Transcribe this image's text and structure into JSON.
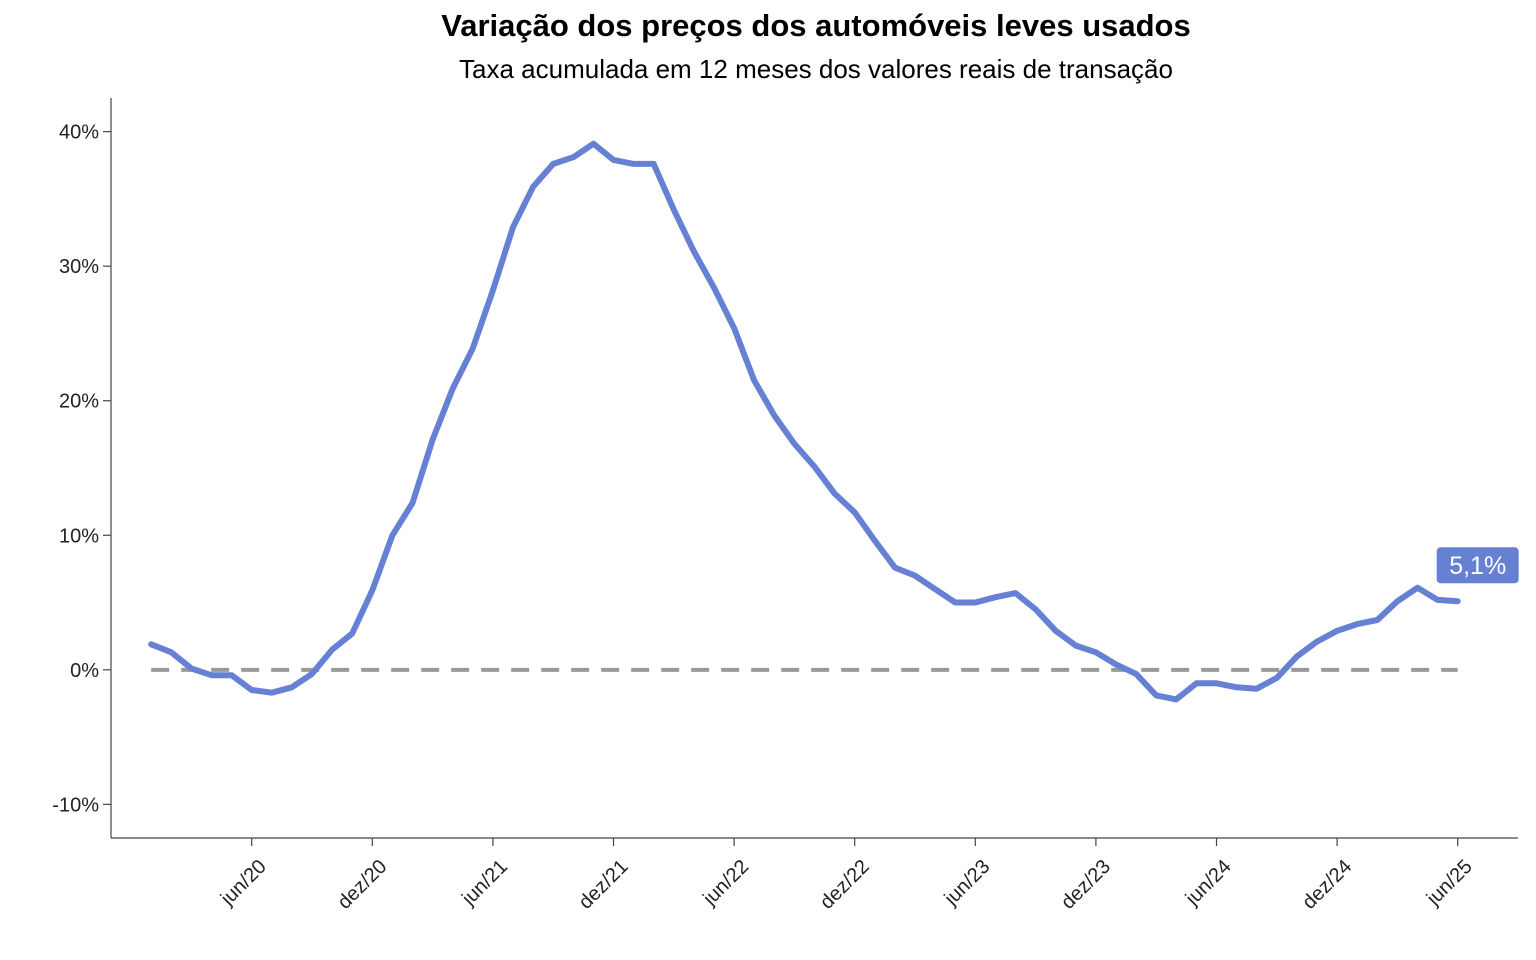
{
  "chart_data": {
    "type": "line",
    "title": "Variação dos preços dos automóveis leves usados",
    "subtitle": "Taxa acumulada em 12 meses dos valores reais de transação",
    "xlabel": "",
    "ylabel": "",
    "ylim": [
      -12.5,
      42.5
    ],
    "yticks": [
      -10,
      0,
      10,
      20,
      30,
      40
    ],
    "ytick_labels": [
      "-10%",
      "0%",
      "10%",
      "20%",
      "30%",
      "40%"
    ],
    "xticks": [
      "2020-06",
      "2020-12",
      "2021-06",
      "2021-12",
      "2022-06",
      "2022-12",
      "2023-06",
      "2023-12",
      "2024-06",
      "2024-12",
      "2025-06"
    ],
    "xtick_labels": [
      "jun/20",
      "dez/20",
      "jun/21",
      "dez/21",
      "jun/22",
      "dez/22",
      "jun/23",
      "dez/23",
      "jun/24",
      "dez/24",
      "jun/25"
    ],
    "xlim": [
      "2019-11",
      "2025-09"
    ],
    "grid": false,
    "series": [
      {
        "color": "#6680d4",
        "x": [
          "2020-01",
          "2020-02",
          "2020-03",
          "2020-04",
          "2020-05",
          "2020-06",
          "2020-07",
          "2020-08",
          "2020-09",
          "2020-10",
          "2020-11",
          "2020-12",
          "2021-01",
          "2021-02",
          "2021-03",
          "2021-04",
          "2021-05",
          "2021-06",
          "2021-07",
          "2021-08",
          "2021-09",
          "2021-10",
          "2021-11",
          "2021-12",
          "2022-01",
          "2022-02",
          "2022-03",
          "2022-04",
          "2022-05",
          "2022-06",
          "2022-07",
          "2022-08",
          "2022-09",
          "2022-10",
          "2022-11",
          "2022-12",
          "2023-01",
          "2023-02",
          "2023-03",
          "2023-04",
          "2023-05",
          "2023-06",
          "2023-07",
          "2023-08",
          "2023-09",
          "2023-10",
          "2023-11",
          "2023-12",
          "2024-01",
          "2024-02",
          "2024-03",
          "2024-04",
          "2024-05",
          "2024-06",
          "2024-07",
          "2024-08",
          "2024-09",
          "2024-10",
          "2024-11",
          "2024-12",
          "2025-01",
          "2025-02",
          "2025-03",
          "2025-04",
          "2025-05",
          "2025-06"
        ],
        "values": [
          1.9,
          1.3,
          0.1,
          -0.4,
          -0.4,
          -1.5,
          -1.7,
          -1.3,
          -0.3,
          1.5,
          2.7,
          5.9,
          10.0,
          12.4,
          17.1,
          20.9,
          23.9,
          28.2,
          32.9,
          35.9,
          37.6,
          38.1,
          39.1,
          37.9,
          37.6,
          37.6,
          34.2,
          31.1,
          28.4,
          25.4,
          21.5,
          18.9,
          16.8,
          15.1,
          13.1,
          11.7,
          9.6,
          7.6,
          7.0,
          6.0,
          5.0,
          5.0,
          5.4,
          5.7,
          4.5,
          2.9,
          1.8,
          1.3,
          0.4,
          -0.3,
          -1.9,
          -2.2,
          -1.0,
          -1.0,
          -1.3,
          -1.4,
          -0.6,
          1.0,
          2.1,
          2.9,
          3.4,
          3.7,
          5.1,
          6.1,
          5.2,
          5.1
        ]
      }
    ],
    "reference_line": {
      "y": 0,
      "style": "dashed",
      "color": "#999999"
    },
    "end_label": {
      "text": "5,1%",
      "color": "#6680d4"
    }
  }
}
